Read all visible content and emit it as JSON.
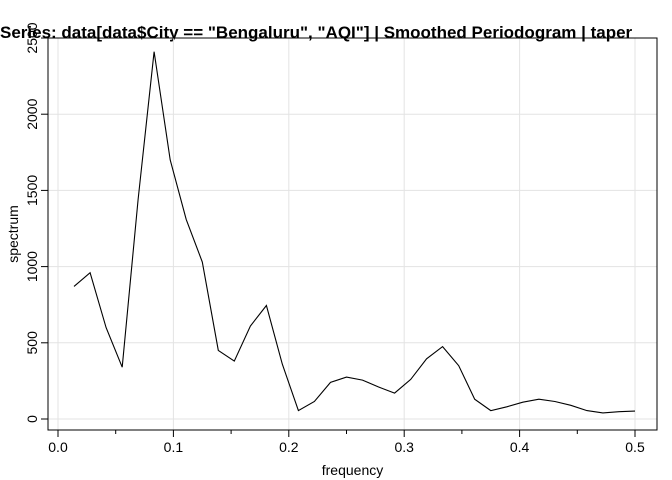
{
  "chart_data": {
    "type": "line",
    "title": "Series: data[data$City == \"Bengaluru\", \"AQI\"]  |  Smoothed Periodogram  |  taper",
    "xlabel": "frequency",
    "ylabel": "spectrum",
    "xlim": [
      0,
      0.5
    ],
    "ylim": [
      0,
      2500
    ],
    "xticks": [
      0.0,
      0.1,
      0.2,
      0.3,
      0.4,
      0.5
    ],
    "xtick_labels": [
      "0.0",
      "0.1",
      "0.2",
      "0.3",
      "0.4",
      "0.5"
    ],
    "yticks": [
      0,
      500,
      1000,
      1500,
      2000,
      2500
    ],
    "ytick_labels": [
      "0",
      "500",
      "1000",
      "1500",
      "2000",
      "2500"
    ],
    "grid": true,
    "series": [
      {
        "x": [
          0.0139,
          0.0278,
          0.0417,
          0.0556,
          0.0694,
          0.0833,
          0.0972,
          0.1111,
          0.125,
          0.1389,
          0.1528,
          0.1667,
          0.1806,
          0.1944,
          0.2083,
          0.2222,
          0.2361,
          0.25,
          0.2639,
          0.2778,
          0.2917,
          0.3056,
          0.3194,
          0.3333,
          0.3472,
          0.3611,
          0.375,
          0.3889,
          0.4028,
          0.4167,
          0.4306,
          0.4444,
          0.4583,
          0.4722,
          0.4861,
          0.5
        ],
        "y": [
          870,
          960,
          600,
          340,
          1440,
          2410,
          1700,
          1310,
          1030,
          450,
          380,
          610,
          745,
          360,
          55,
          115,
          240,
          275,
          255,
          210,
          170,
          260,
          395,
          475,
          350,
          130,
          55,
          80,
          110,
          130,
          115,
          90,
          55,
          40,
          48,
          52
        ],
        "color": "#000000"
      }
    ]
  }
}
